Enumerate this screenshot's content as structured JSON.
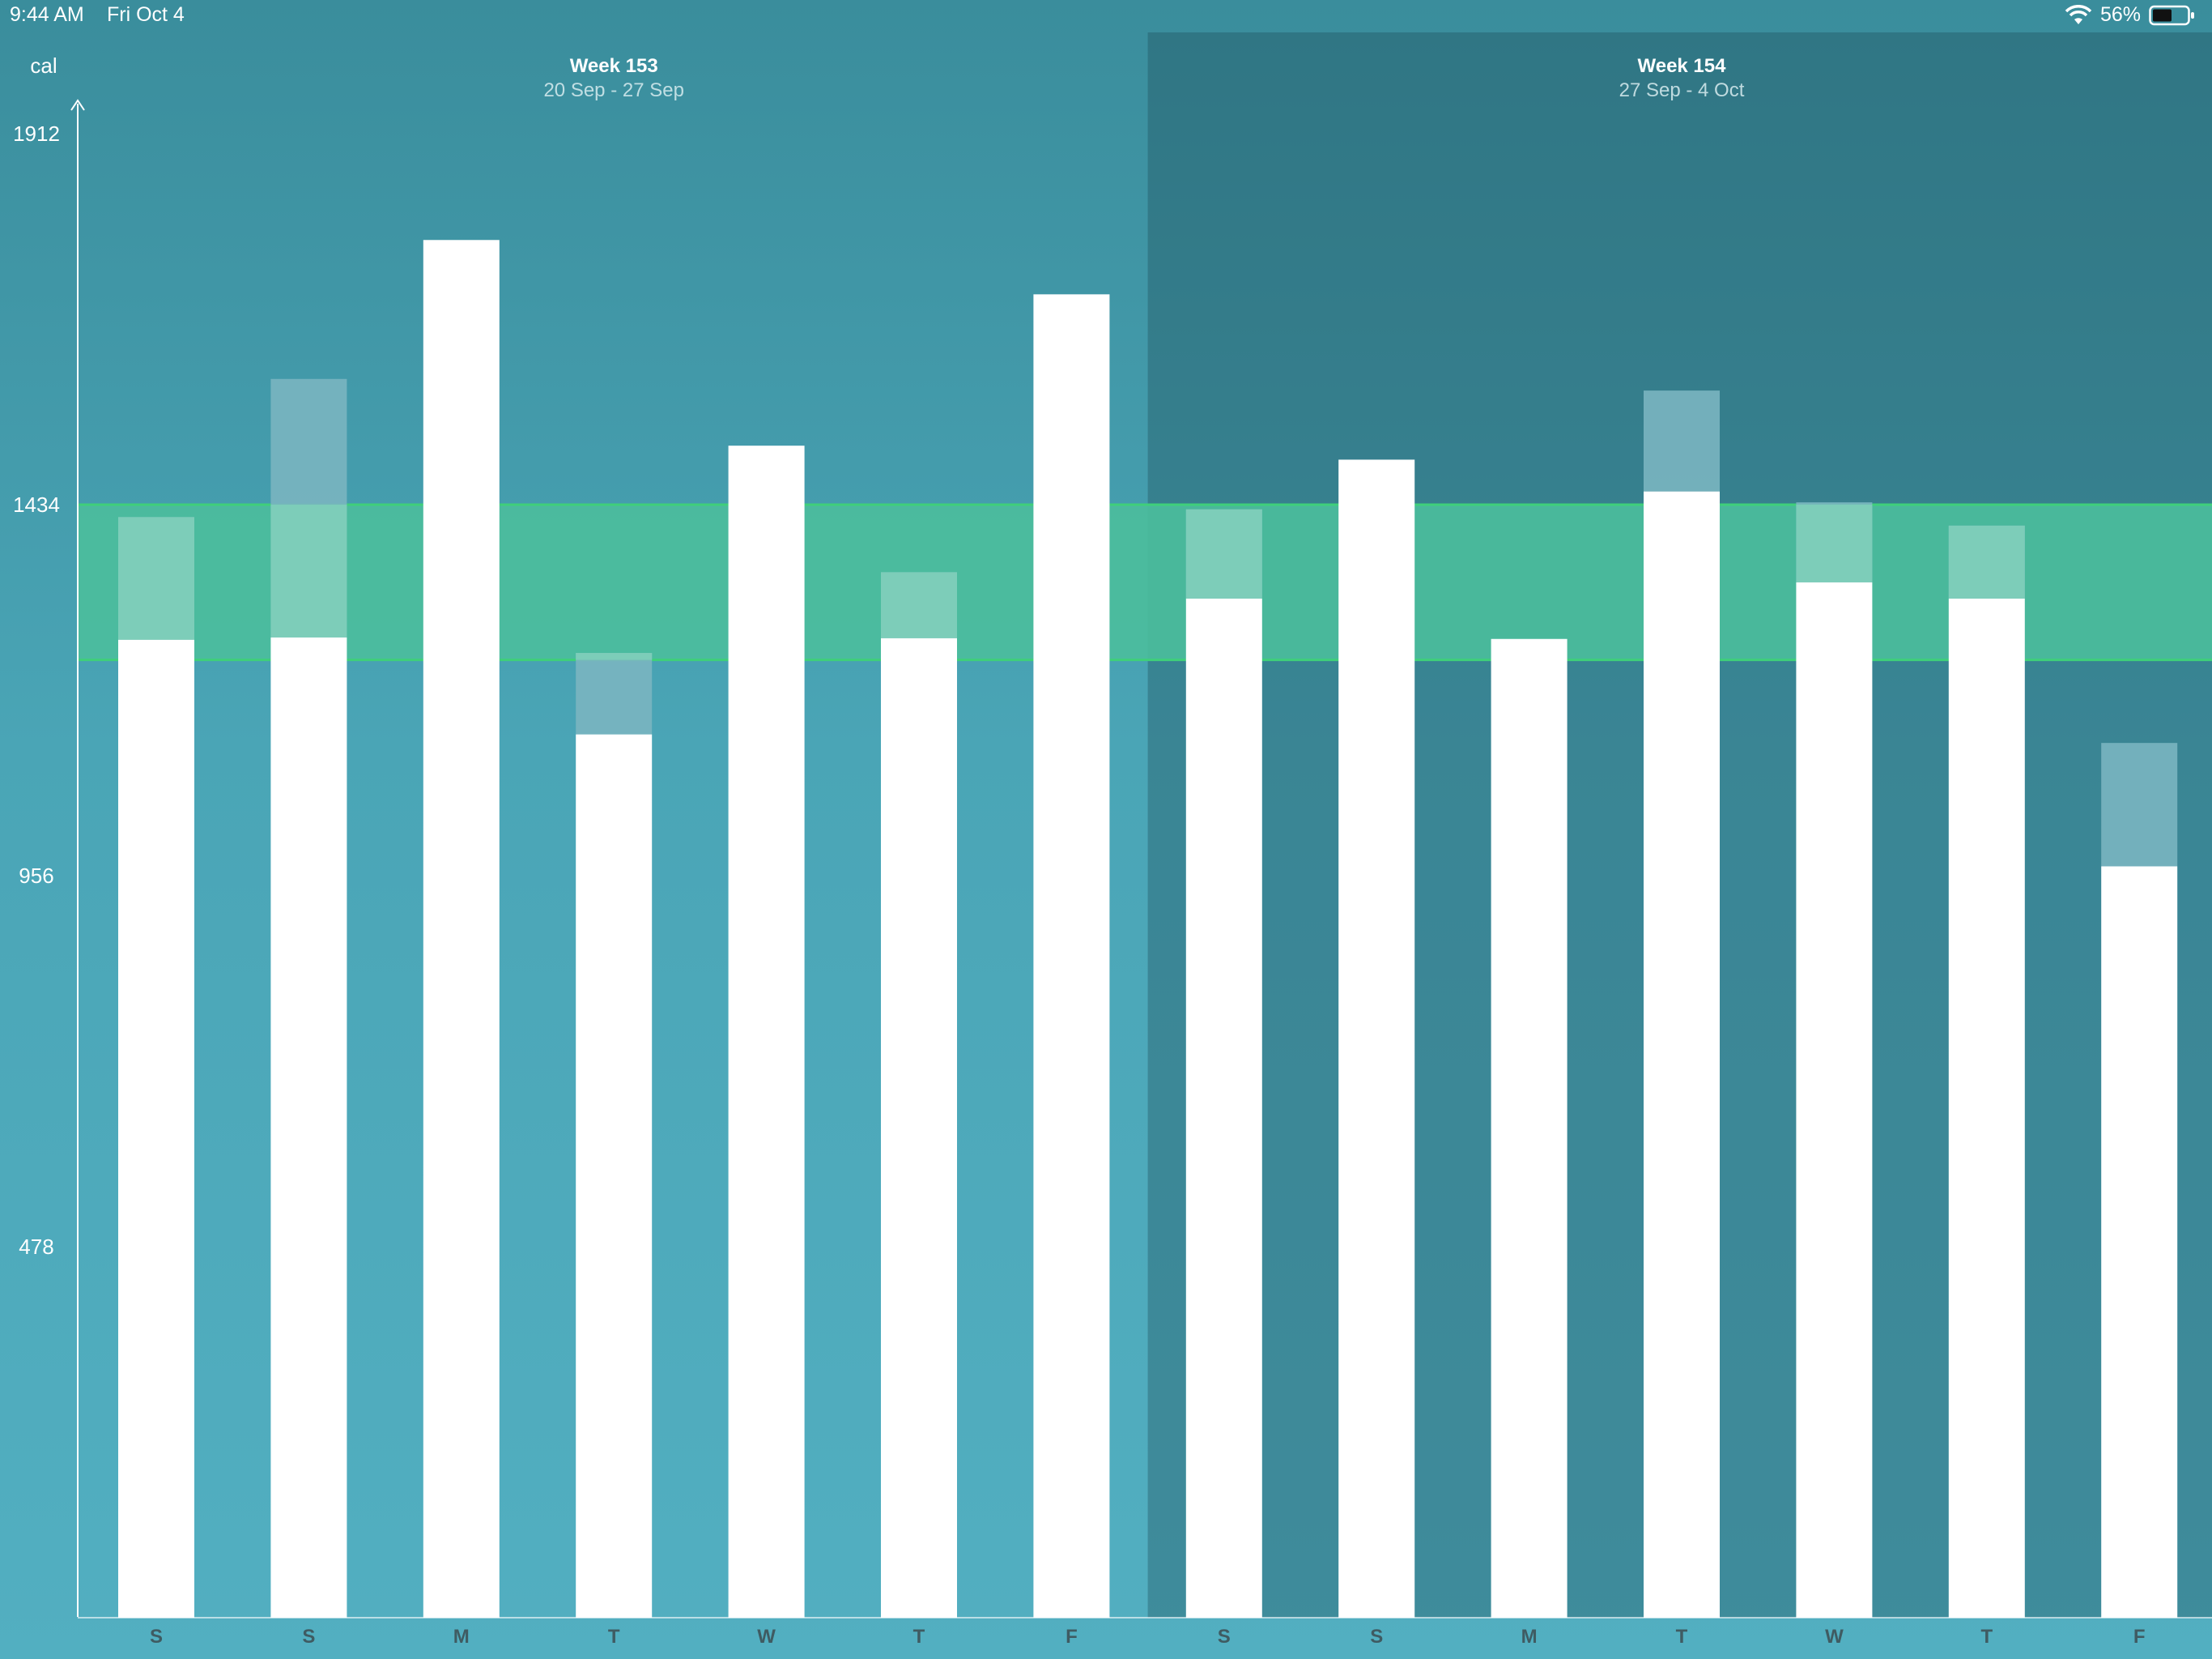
{
  "status_bar": {
    "time": "9:44 AM",
    "date": "Fri Oct 4",
    "battery": "56%"
  },
  "colors": {
    "panel_bg": "#4aa5b6",
    "target_band": "#4bbe9c",
    "target_band_edge": "#3fcf7a",
    "bar": "#ffffff",
    "extra_bar_in_band": "#7dcdb9",
    "extra_bar": "#7ab5c0",
    "axis": "#ffffff"
  },
  "chart_data": {
    "type": "bar",
    "ylabel": "cal",
    "y_ticks": [
      478,
      956,
      1434,
      1912
    ],
    "ylim": [
      0,
      1912
    ],
    "target_range": [
      1234,
      1434
    ],
    "weeks": [
      {
        "title": "Week 153",
        "range": "20 Sep - 27 Sep"
      },
      {
        "title": "Week 154",
        "range": "27 Sep - 4 Oct"
      }
    ],
    "categories": [
      "S",
      "S",
      "M",
      "T",
      "W",
      "T",
      "F",
      "S",
      "S",
      "M",
      "T",
      "W",
      "T",
      "F"
    ],
    "series": [
      {
        "values": [
          1260,
          1263,
          1775,
          1138,
          1510,
          1262,
          1705,
          1313,
          1492,
          1261,
          1451,
          1334,
          1313,
          968
        ]
      },
      {
        "values": [
          1418,
          1596,
          1775,
          1243,
          1510,
          1347,
          1705,
          1428,
          1492,
          1261,
          1581,
          1437,
          1407,
          1127
        ]
      }
    ]
  }
}
